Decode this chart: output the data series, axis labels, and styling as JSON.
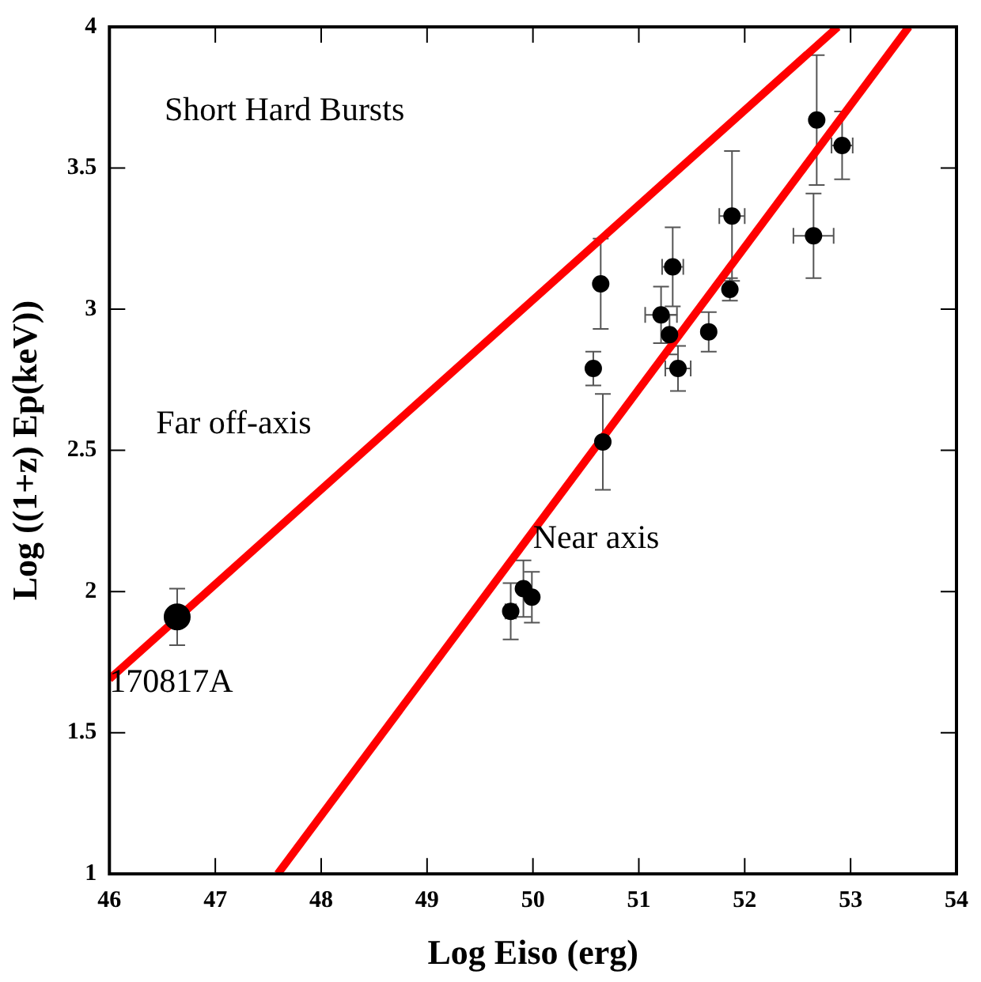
{
  "chart_data": {
    "type": "scatter",
    "xlabel": "Log Eiso (erg)",
    "ylabel": "Log ((1+z) Ep(keV))",
    "xlim": [
      46,
      54
    ],
    "xticks": [
      46,
      47,
      48,
      49,
      50,
      51,
      52,
      53,
      54
    ],
    "ylim": [
      1,
      4
    ],
    "yticks": [
      1,
      1.5,
      2,
      2.5,
      3,
      3.5,
      4
    ],
    "grid": false,
    "legend": false,
    "marker": "circle",
    "series": [
      {
        "color": "#000000",
        "x": [
          50.64,
          50.57,
          50.66,
          51.21,
          51.32,
          51.29,
          51.37,
          51.66,
          51.86,
          51.88,
          52.65,
          52.68,
          52.92,
          49.79,
          49.91,
          49.99
        ],
        "values": [
          3.09,
          2.79,
          2.53,
          2.98,
          3.15,
          2.91,
          2.79,
          2.92,
          3.07,
          3.33,
          3.26,
          3.67,
          3.58,
          1.93,
          2.01,
          1.98
        ],
        "errors": [
          0.16,
          0.06,
          0.17,
          0.1,
          0.14,
          0.07,
          0.08,
          0.07,
          0.04,
          0.23,
          0.15,
          0.23,
          0.12,
          0.1,
          0.1,
          0.09
        ],
        "xerrors": [
          null,
          null,
          null,
          0.15,
          0.1,
          null,
          0.12,
          null,
          null,
          0.12,
          0.19,
          null,
          0.1,
          0.05,
          null,
          null
        ]
      },
      {
        "color": "#000000",
        "x": [
          46.64
        ],
        "values": [
          1.91
        ],
        "errors": [
          0.1
        ]
      },
      {
        "type": "line",
        "marker": "none",
        "color": "#ff0000",
        "x": [
          46,
          52.88
        ],
        "values": [
          1.69,
          4
        ]
      },
      {
        "type": "line",
        "marker": "none",
        "color": "#ff0000",
        "x": [
          47.59,
          53.55
        ],
        "values": [
          1,
          4
        ]
      }
    ],
    "annotations": [
      "Short Hard Bursts",
      "Far off-axis",
      "Near axis",
      "170817A"
    ]
  }
}
